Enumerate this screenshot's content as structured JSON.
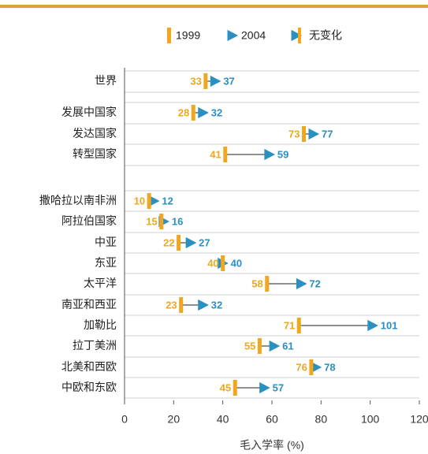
{
  "chart_data": {
    "type": "arrow",
    "categories": [
      "世界",
      "发展中国家",
      "发达国家",
      "转型国家",
      "撒哈拉以南非洲",
      "阿拉伯国家",
      "中亚",
      "东亚",
      "太平洋",
      "南亚和西亚",
      "加勒比",
      "拉丁美洲",
      "北美和西欧",
      "中欧和东欧"
    ],
    "series": [
      {
        "name": "1999",
        "color": "#f0a71e",
        "values": [
          33,
          28,
          73,
          41,
          10,
          15,
          22,
          40,
          58,
          23,
          71,
          55,
          76,
          45
        ]
      },
      {
        "name": "2004",
        "color": "#2a8fc1",
        "values": [
          37,
          32,
          77,
          59,
          12,
          16,
          27,
          40,
          72,
          32,
          101,
          61,
          78,
          57
        ]
      }
    ],
    "no_change_label": "无变化",
    "xlim": [
      0,
      120
    ],
    "xticks": [
      0,
      20,
      40,
      60,
      80,
      100,
      120
    ],
    "xlabel": "毛入学率 (%)"
  }
}
